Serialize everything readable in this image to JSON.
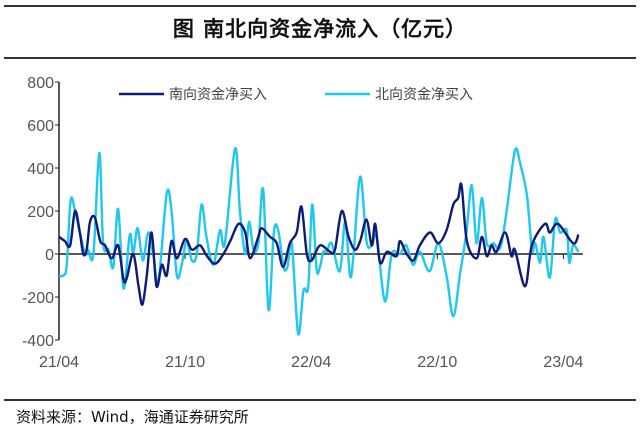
{
  "title": "图  南北向资金净流入（亿元）",
  "source": "资料来源：Wind，海通证券研究所",
  "chart_data": {
    "type": "line",
    "title": "南北向资金净流入（亿元）",
    "xlabel": "",
    "ylabel": "亿元",
    "x_unit": "weeks since 21/04",
    "xlim": [
      0,
      108
    ],
    "ylim": [
      -400,
      800
    ],
    "yticks": [
      800,
      600,
      400,
      200,
      0,
      -200,
      -400
    ],
    "xticks": [
      {
        "x": 0,
        "label": "21/04"
      },
      {
        "x": 26,
        "label": "21/10"
      },
      {
        "x": 52,
        "label": "22/04"
      },
      {
        "x": 78,
        "label": "22/10"
      },
      {
        "x": 104,
        "label": "23/04"
      }
    ],
    "grid": false,
    "legend": "top",
    "series": [
      {
        "name": "南向资金净买入",
        "color": "#0d1a7a",
        "points": [
          [
            0,
            80
          ],
          [
            1.2,
            60
          ],
          [
            2.3,
            40
          ],
          [
            3.3,
            200
          ],
          [
            4.3,
            100
          ],
          [
            5,
            0
          ],
          [
            5.7,
            20
          ],
          [
            6.4,
            150
          ],
          [
            7.4,
            170
          ],
          [
            8.5,
            60
          ],
          [
            9.5,
            40
          ],
          [
            10.9,
            -20
          ],
          [
            12.2,
            40
          ],
          [
            13.3,
            -120
          ],
          [
            14,
            -110
          ],
          [
            15.3,
            0
          ],
          [
            16.4,
            -150
          ],
          [
            17.2,
            -235
          ],
          [
            18.1,
            -100
          ],
          [
            19.1,
            100
          ],
          [
            20.1,
            -150
          ],
          [
            21.2,
            -50
          ],
          [
            22.2,
            -100
          ],
          [
            23.2,
            60
          ],
          [
            24.3,
            -20
          ],
          [
            26,
            70
          ],
          [
            27.4,
            20
          ],
          [
            29.1,
            40
          ],
          [
            30.5,
            -10
          ],
          [
            32.2,
            -45
          ],
          [
            33.9,
            0
          ],
          [
            35.3,
            60
          ],
          [
            37,
            140
          ],
          [
            38.4,
            100
          ],
          [
            39.4,
            -20
          ],
          [
            41.1,
            80
          ],
          [
            41.8,
            120
          ],
          [
            43.5,
            80
          ],
          [
            44.9,
            50
          ],
          [
            46.2,
            -60
          ],
          [
            47.6,
            50
          ],
          [
            49,
            100
          ],
          [
            50,
            220
          ],
          [
            51.1,
            0
          ],
          [
            52.1,
            -30
          ],
          [
            53.8,
            40
          ],
          [
            55.9,
            10
          ],
          [
            56.9,
            20
          ],
          [
            58.3,
            200
          ],
          [
            59.7,
            80
          ],
          [
            61,
            20
          ],
          [
            62.1,
            60
          ],
          [
            63.4,
            160
          ],
          [
            64.5,
            40
          ],
          [
            65.2,
            140
          ],
          [
            66.2,
            -40
          ],
          [
            67.6,
            10
          ],
          [
            69.6,
            -10
          ],
          [
            70.3,
            60
          ],
          [
            71.7,
            0
          ],
          [
            73.1,
            -30
          ],
          [
            74.4,
            40
          ],
          [
            76.5,
            100
          ],
          [
            78.2,
            50
          ],
          [
            79.9,
            110
          ],
          [
            81.3,
            230
          ],
          [
            82.3,
            260
          ],
          [
            83,
            320
          ],
          [
            84.1,
            60
          ],
          [
            86.1,
            -20
          ],
          [
            87.2,
            80
          ],
          [
            88.2,
            -10
          ],
          [
            89.2,
            40
          ],
          [
            90.2,
            10
          ],
          [
            92,
            100
          ],
          [
            93.3,
            -10
          ],
          [
            94,
            20
          ],
          [
            96.1,
            -150
          ],
          [
            97.5,
            40
          ],
          [
            100.2,
            140
          ],
          [
            101.2,
            100
          ],
          [
            102.9,
            140
          ],
          [
            106,
            50
          ],
          [
            107.1,
            90
          ]
        ]
      },
      {
        "name": "北向资金净买入",
        "color": "#1ec8ee",
        "points": [
          [
            0,
            -100
          ],
          [
            0.9,
            -100
          ],
          [
            1.6,
            -50
          ],
          [
            2.4,
            250
          ],
          [
            3.3,
            200
          ],
          [
            4.3,
            100
          ],
          [
            5.4,
            0
          ],
          [
            6,
            20
          ],
          [
            7.1,
            0
          ],
          [
            8.3,
            470
          ],
          [
            9.1,
            50
          ],
          [
            10.2,
            20
          ],
          [
            11.2,
            -60
          ],
          [
            12.2,
            210
          ],
          [
            13.3,
            -160
          ],
          [
            14.6,
            90
          ],
          [
            15.3,
            0
          ],
          [
            16.2,
            120
          ],
          [
            17.3,
            -30
          ],
          [
            18.4,
            100
          ],
          [
            19.5,
            -10
          ],
          [
            20.5,
            -130
          ],
          [
            22.2,
            280
          ],
          [
            23.2,
            200
          ],
          [
            24.3,
            -100
          ],
          [
            25.3,
            -50
          ],
          [
            26.3,
            60
          ],
          [
            27.4,
            -30
          ],
          [
            28.4,
            0
          ],
          [
            29.4,
            230
          ],
          [
            30.4,
            80
          ],
          [
            31.8,
            -50
          ],
          [
            33.2,
            110
          ],
          [
            34.2,
            50
          ],
          [
            36.3,
            490
          ],
          [
            37.3,
            200
          ],
          [
            38.4,
            0
          ],
          [
            39.2,
            150
          ],
          [
            40.1,
            20
          ],
          [
            41.1,
            50
          ],
          [
            42.1,
            300
          ],
          [
            43.2,
            -260
          ],
          [
            44.3,
            100
          ],
          [
            45.2,
            110
          ],
          [
            46.3,
            -60
          ],
          [
            47.1,
            -60
          ],
          [
            48,
            50
          ],
          [
            49.3,
            -370
          ],
          [
            50.4,
            -170
          ],
          [
            51.4,
            -150
          ],
          [
            52.2,
            230
          ],
          [
            53.1,
            -70
          ],
          [
            53.8,
            -60
          ],
          [
            54.5,
            10
          ],
          [
            55.2,
            10
          ],
          [
            56.2,
            50
          ],
          [
            57.9,
            -80
          ],
          [
            59,
            150
          ],
          [
            60,
            -100
          ],
          [
            60.7,
            -10
          ],
          [
            62.1,
            360
          ],
          [
            63.4,
            60
          ],
          [
            64.5,
            40
          ],
          [
            65.5,
            80
          ],
          [
            67.2,
            -220
          ],
          [
            68.6,
            0
          ],
          [
            70.3,
            0
          ],
          [
            71.6,
            40
          ],
          [
            73,
            -50
          ],
          [
            74.4,
            10
          ],
          [
            76.4,
            -80
          ],
          [
            78.2,
            50
          ],
          [
            79.9,
            -100
          ],
          [
            81.3,
            -290
          ],
          [
            82.7,
            -90
          ],
          [
            84,
            100
          ],
          [
            85.1,
            320
          ],
          [
            86.1,
            50
          ],
          [
            87.2,
            260
          ],
          [
            88.2,
            50
          ],
          [
            89.6,
            50
          ],
          [
            91,
            30
          ],
          [
            92.3,
            200
          ],
          [
            94,
            480
          ],
          [
            95.1,
            420
          ],
          [
            96.5,
            270
          ],
          [
            97.5,
            20
          ],
          [
            98.2,
            50
          ],
          [
            99.2,
            -40
          ],
          [
            99.9,
            80
          ],
          [
            101.2,
            -110
          ],
          [
            102.3,
            160
          ],
          [
            103.3,
            100
          ],
          [
            104.7,
            110
          ],
          [
            105.2,
            -40
          ],
          [
            106,
            40
          ],
          [
            107.1,
            10
          ]
        ]
      }
    ]
  }
}
